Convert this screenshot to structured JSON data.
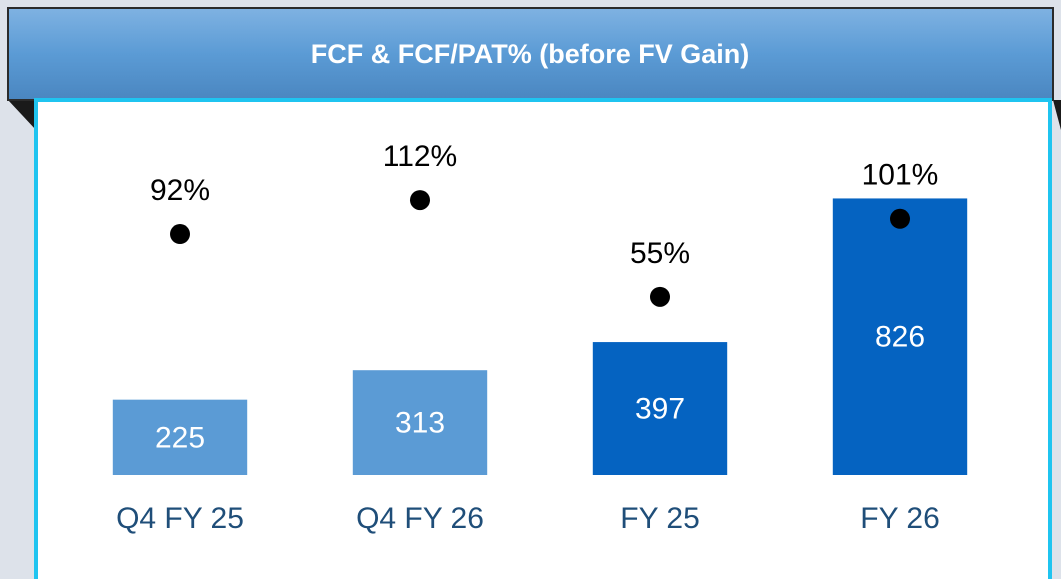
{
  "chart_data": {
    "type": "combo",
    "title": "FCF & FCF/PAT% (before FV Gain)",
    "categories": [
      "Q4 FY 25",
      "Q4 FY 26",
      "FY 25",
      "FY 26"
    ],
    "ylim": [
      0,
      1120
    ],
    "y2lim": [
      -50,
      171
    ],
    "series": [
      {
        "type": "bar",
        "colors": [
          "#5b9bd5",
          "#5b9bd5",
          "#0563c1",
          "#0563c1"
        ],
        "values": [
          225,
          313,
          397,
          826
        ]
      },
      {
        "type": "scatter",
        "axis": "y2",
        "color": "#000000",
        "values": [
          92,
          112,
          55,
          101
        ],
        "value_labels": [
          "92%",
          "112%",
          "55%",
          "101%"
        ]
      }
    ]
  }
}
